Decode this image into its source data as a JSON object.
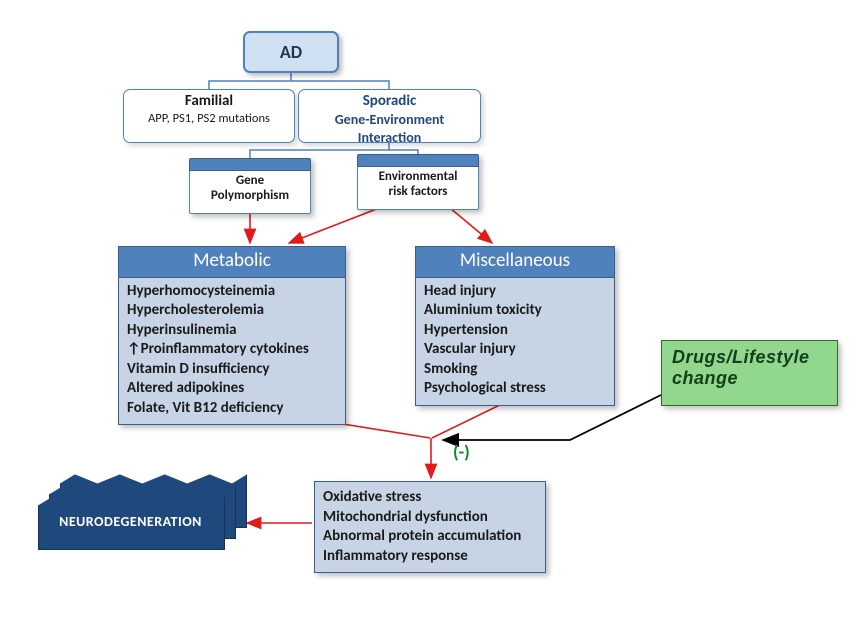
{
  "type": "flowchart",
  "background_color": "#ffffff",
  "colors": {
    "blue_fill": "#c7d4e6",
    "blue_light": "#cfe0f2",
    "blue_header": "#4f81bd",
    "blue_border": "#3a5f8a",
    "blue_dark": "#1f497d",
    "green_fill": "#92d78e",
    "green_border": "#2f6b2f",
    "arrow_red": "#e11b1b",
    "arrow_black": "#000000",
    "text": "#1a1a1a",
    "minus": "#0a8a2a"
  },
  "arrows": {
    "red": [
      {
        "from": "gene-polymorphism",
        "to": "metabolic"
      },
      {
        "from": "env-risk-factors",
        "to": "metabolic"
      },
      {
        "from": "env-risk-factors",
        "to": "miscellaneous"
      },
      {
        "from": "metabolic",
        "to": "oxidative"
      },
      {
        "from": "miscellaneous",
        "to": "oxidative"
      },
      {
        "from": "oxidative",
        "to": "neurodegeneration"
      }
    ],
    "black": [
      {
        "from": "drugs-lifestyle",
        "to": "oxidative",
        "label": "(-)"
      }
    ],
    "connectors": [
      {
        "from": "ad-root",
        "to": "familial",
        "style": "bracket"
      },
      {
        "from": "ad-root",
        "to": "sporadic",
        "style": "bracket"
      },
      {
        "from": "sporadic",
        "to": "gene-polymorphism",
        "style": "bracket"
      },
      {
        "from": "sporadic",
        "to": "env-risk-factors",
        "style": "bracket"
      }
    ]
  },
  "ad": {
    "title": "AD"
  },
  "familial": {
    "title": "Familial",
    "sub": "APP, PS1, PS2 mutations"
  },
  "sporadic": {
    "title": "Sporadic",
    "l1": "Gene-Environment",
    "l2": "Interaction"
  },
  "gp": {
    "l1": "Gene",
    "l2": "Polymorphism"
  },
  "erf": {
    "l1": "Environmental",
    "l2": "risk factors"
  },
  "metabolic": {
    "header": "Metabolic",
    "items": [
      "Hyperhomocysteinemia",
      "Hypercholesterolemia",
      "Hyperinsulinemia",
      "↑Proinflammatory cytokines",
      "Vitamin D insufficiency",
      "Altered adipokines",
      "Folate, Vit B12 deficiency"
    ]
  },
  "misc": {
    "header": "Miscellaneous",
    "items": [
      "Head injury",
      "Aluminium toxicity",
      "Hypertension",
      "Vascular injury",
      "Smoking",
      "Psychological stress"
    ]
  },
  "oxidative": {
    "items": [
      "Oxidative stress",
      "Mitochondrial dysfunction",
      "Abnormal protein accumulation",
      "Inflammatory response"
    ]
  },
  "drugs": {
    "l1": "Drugs/Lifestyle",
    "l2": "change"
  },
  "neuro": {
    "label": "NEURODEGENERATION"
  },
  "minus": "(-)"
}
